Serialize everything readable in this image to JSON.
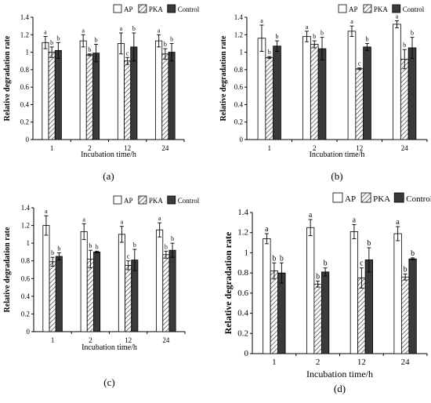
{
  "legend": {
    "entries": [
      {
        "name": "AP",
        "fill": "white"
      },
      {
        "name": "PKA",
        "fill": "hatch"
      },
      {
        "name": "Control",
        "fill": "dark"
      }
    ]
  },
  "colors": {
    "dark": "#3a3a3a",
    "hatch": "#555555",
    "white": "#ffffff",
    "axis": "#000000"
  },
  "chart_data": [
    {
      "panel": "(a)",
      "type": "bar",
      "xlabel": "Incubation time/h",
      "ylabel": "Relative degradation rate",
      "categories": [
        "1",
        "2",
        "12",
        "24"
      ],
      "ylim": [
        0,
        1.4
      ],
      "yticks": [
        "0",
        "0.2",
        "0.4",
        "0.6",
        "0.8",
        "1",
        "1.2",
        "1.4"
      ],
      "series": [
        {
          "name": "AP",
          "values": [
            1.11,
            1.13,
            1.1,
            1.13
          ],
          "errors": [
            0.07,
            0.07,
            0.12,
            0.07
          ],
          "letters": [
            "a",
            "a",
            "a",
            "a"
          ]
        },
        {
          "name": "PKA",
          "values": [
            1.0,
            0.97,
            0.9,
            0.98
          ],
          "errors": [
            0.06,
            0.01,
            0.04,
            0.06
          ],
          "letters": [
            "b",
            "b",
            "c",
            "b"
          ]
        },
        {
          "name": "Control",
          "values": [
            1.02,
            0.99,
            1.06,
            1.0
          ],
          "errors": [
            0.09,
            0.1,
            0.16,
            0.1
          ],
          "letters": [
            "b",
            "b",
            "b",
            "b"
          ]
        }
      ]
    },
    {
      "panel": "(b)",
      "type": "bar",
      "xlabel": "Incubation time/h",
      "ylabel": "Relative degradation rate",
      "categories": [
        "1",
        "2",
        "12",
        "24"
      ],
      "ylim": [
        0,
        1.4
      ],
      "yticks": [
        "0",
        "0.2",
        "0.4",
        "0.6",
        "0.8",
        "1",
        "1.2",
        "1.4"
      ],
      "series": [
        {
          "name": "AP",
          "values": [
            1.16,
            1.18,
            1.24,
            1.32
          ],
          "errors": [
            0.15,
            0.06,
            0.06,
            0.04
          ],
          "letters": [
            "a",
            "a",
            "a",
            "a"
          ]
        },
        {
          "name": "PKA",
          "values": [
            0.94,
            1.09,
            0.81,
            0.92
          ],
          "errors": [
            0.01,
            0.04,
            0.01,
            0.11
          ],
          "letters": [
            "b",
            "b",
            "c",
            "b"
          ]
        },
        {
          "name": "Control",
          "values": [
            1.07,
            1.04,
            1.06,
            1.05
          ],
          "errors": [
            0.06,
            0.13,
            0.04,
            0.12
          ],
          "letters": [
            "b",
            "b",
            "b",
            "b"
          ]
        }
      ]
    },
    {
      "panel": "(c)",
      "type": "bar",
      "xlabel": "Incubation time/h",
      "ylabel": "Relative degradation rate",
      "categories": [
        "1",
        "2",
        "12",
        "24"
      ],
      "ylim": [
        0,
        1.4
      ],
      "yticks": [
        "0",
        "0.2",
        "0.4",
        "0.6",
        "0.8",
        "1",
        "1.2",
        "1.4"
      ],
      "series": [
        {
          "name": "AP",
          "values": [
            1.2,
            1.13,
            1.1,
            1.15
          ],
          "errors": [
            0.11,
            0.09,
            0.09,
            0.08
          ],
          "letters": [
            "a",
            "a",
            "a",
            "a"
          ]
        },
        {
          "name": "PKA",
          "values": [
            0.79,
            0.82,
            0.75,
            0.87
          ],
          "errors": [
            0.05,
            0.1,
            0.05,
            0.04
          ],
          "letters": [
            "b",
            "b",
            "c",
            "b"
          ]
        },
        {
          "name": "Control",
          "values": [
            0.85,
            0.9,
            0.81,
            0.92
          ],
          "errors": [
            0.04,
            0.01,
            0.12,
            0.08
          ],
          "letters": [
            "b",
            "b",
            "b",
            "b"
          ]
        }
      ]
    },
    {
      "panel": "(d)",
      "type": "bar",
      "xlabel": "Incubation time/h",
      "ylabel": "Relative degradation rate",
      "categories": [
        "1",
        "2",
        "12",
        "24"
      ],
      "ylim": [
        0,
        1.4
      ],
      "yticks": [
        "0",
        "0.2",
        "0.4",
        "0.6",
        "0.8",
        "1",
        "1.2",
        "1.4"
      ],
      "series": [
        {
          "name": "AP",
          "values": [
            1.14,
            1.25,
            1.21,
            1.19
          ],
          "errors": [
            0.05,
            0.08,
            0.07,
            0.07
          ],
          "letters": [
            "a",
            "a",
            "a",
            "a"
          ]
        },
        {
          "name": "PKA",
          "values": [
            0.82,
            0.69,
            0.75,
            0.76
          ],
          "errors": [
            0.08,
            0.03,
            0.1,
            0.03
          ],
          "letters": [
            "b",
            "b",
            "c",
            "b"
          ]
        },
        {
          "name": "Control",
          "values": [
            0.8,
            0.81,
            0.93,
            0.94
          ],
          "errors": [
            0.1,
            0.04,
            0.12,
            0.01
          ],
          "letters": [
            "b",
            "b",
            "b",
            "b"
          ]
        }
      ]
    }
  ]
}
